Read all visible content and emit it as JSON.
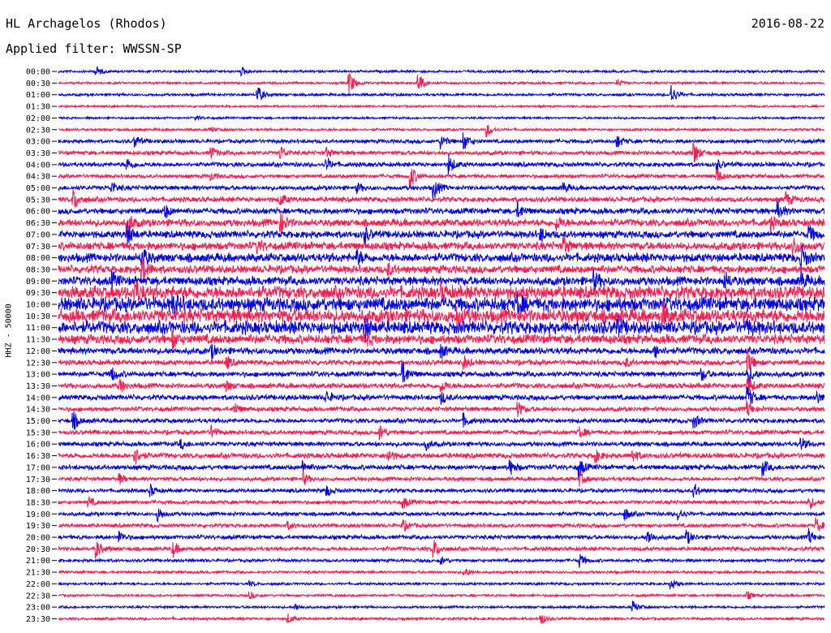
{
  "header": {
    "station": "HL Archagelos (Rhodos)",
    "date": "2016-08-22",
    "filter": "Applied filter: WWSSN-SP"
  },
  "colors": {
    "trace_a": "#0000e6",
    "trace_b": "#ff1a4d",
    "background": "#ffffff"
  },
  "chart_data": {
    "type": "line",
    "title": "HL Archagelos (Rhodos)",
    "ylabel": "HHZ - 50000",
    "xlabel": "",
    "rows": [
      {
        "time": "00:00",
        "activity": 0.1,
        "events": [
          [
            0.05,
            0.4
          ],
          [
            0.24,
            0.3
          ]
        ]
      },
      {
        "time": "00:30",
        "activity": 0.1,
        "events": [
          [
            0.38,
            1.0
          ],
          [
            0.47,
            0.9
          ],
          [
            0.73,
            0.3
          ]
        ]
      },
      {
        "time": "01:00",
        "activity": 0.12,
        "events": [
          [
            0.26,
            0.8
          ],
          [
            0.8,
            0.9
          ]
        ]
      },
      {
        "time": "01:30",
        "activity": 0.08,
        "events": []
      },
      {
        "time": "02:00",
        "activity": 0.08,
        "events": [
          [
            0.18,
            0.2
          ]
        ]
      },
      {
        "time": "02:30",
        "activity": 0.1,
        "events": [
          [
            0.56,
            0.6
          ],
          [
            0.2,
            0.2
          ]
        ]
      },
      {
        "time": "03:00",
        "activity": 0.2,
        "events": [
          [
            0.1,
            0.5
          ],
          [
            0.5,
            0.6
          ],
          [
            0.53,
            0.7
          ],
          [
            0.73,
            0.5
          ]
        ]
      },
      {
        "time": "03:30",
        "activity": 0.22,
        "events": [
          [
            0.2,
            0.5
          ],
          [
            0.29,
            0.6
          ],
          [
            0.83,
            1.0
          ],
          [
            0.35,
            0.4
          ]
        ]
      },
      {
        "time": "04:00",
        "activity": 0.25,
        "events": [
          [
            0.09,
            0.5
          ],
          [
            0.51,
            0.8
          ],
          [
            0.35,
            0.5
          ],
          [
            0.86,
            0.4
          ]
        ]
      },
      {
        "time": "04:30",
        "activity": 0.2,
        "events": [
          [
            0.46,
            1.0
          ],
          [
            0.86,
            0.6
          ],
          [
            0.2,
            0.3
          ]
        ]
      },
      {
        "time": "05:00",
        "activity": 0.25,
        "events": [
          [
            0.07,
            0.5
          ],
          [
            0.49,
            0.9
          ],
          [
            0.39,
            0.4
          ],
          [
            0.66,
            0.4
          ]
        ]
      },
      {
        "time": "05:30",
        "activity": 0.3,
        "events": [
          [
            0.02,
            0.9
          ],
          [
            0.29,
            0.5
          ],
          [
            0.95,
            0.6
          ]
        ]
      },
      {
        "time": "06:00",
        "activity": 0.35,
        "events": [
          [
            0.6,
            0.6
          ],
          [
            0.94,
            0.7
          ],
          [
            0.14,
            0.5
          ]
        ]
      },
      {
        "time": "06:30",
        "activity": 0.45,
        "events": [
          [
            0.09,
            1.0
          ],
          [
            0.29,
            0.9
          ],
          [
            0.65,
            0.6
          ],
          [
            0.93,
            0.5
          ]
        ]
      },
      {
        "time": "07:00",
        "activity": 0.45,
        "events": [
          [
            0.09,
            0.9
          ],
          [
            0.4,
            0.6
          ],
          [
            0.63,
            0.5
          ],
          [
            0.98,
            0.7
          ]
        ]
      },
      {
        "time": "07:30",
        "activity": 0.5,
        "events": [
          [
            0.66,
            0.7
          ],
          [
            0.96,
            0.8
          ],
          [
            0.26,
            0.5
          ]
        ]
      },
      {
        "time": "08:00",
        "activity": 0.55,
        "events": [
          [
            0.11,
            0.8
          ],
          [
            0.39,
            0.6
          ],
          [
            0.97,
            1.0
          ]
        ]
      },
      {
        "time": "08:30",
        "activity": 0.5,
        "events": [
          [
            0.11,
            1.0
          ],
          [
            0.43,
            0.5
          ]
        ]
      },
      {
        "time": "09:00",
        "activity": 0.55,
        "events": [
          [
            0.07,
            0.6
          ],
          [
            0.7,
            0.7
          ],
          [
            0.87,
            0.6
          ],
          [
            0.97,
            0.7
          ]
        ]
      },
      {
        "time": "09:30",
        "activity": 0.85,
        "events": [
          [
            0.1,
            1.0
          ],
          [
            0.5,
            0.5
          ]
        ]
      },
      {
        "time": "10:00",
        "activity": 0.9,
        "events": [
          [
            0.15,
            0.8
          ],
          [
            0.6,
            0.9
          ]
        ]
      },
      {
        "time": "10:30",
        "activity": 0.9,
        "events": [
          [
            0.52,
            0.8
          ],
          [
            0.79,
            0.8
          ]
        ]
      },
      {
        "time": "11:00",
        "activity": 0.85,
        "events": [
          [
            0.4,
            0.7
          ],
          [
            0.73,
            0.6
          ],
          [
            0.9,
            0.5
          ]
        ]
      },
      {
        "time": "11:30",
        "activity": 0.6,
        "events": [
          [
            0.15,
            0.6
          ],
          [
            0.4,
            0.5
          ]
        ]
      },
      {
        "time": "12:00",
        "activity": 0.4,
        "events": [
          [
            0.2,
            0.5
          ],
          [
            0.5,
            0.5
          ],
          [
            0.78,
            0.5
          ]
        ]
      },
      {
        "time": "12:30",
        "activity": 0.3,
        "events": [
          [
            0.22,
            0.5
          ],
          [
            0.53,
            0.5
          ],
          [
            0.74,
            0.4
          ],
          [
            0.9,
            1.0
          ]
        ]
      },
      {
        "time": "13:00",
        "activity": 0.3,
        "events": [
          [
            0.07,
            0.6
          ],
          [
            0.45,
            1.0
          ],
          [
            0.9,
            1.0
          ],
          [
            0.84,
            0.5
          ]
        ]
      },
      {
        "time": "13:30",
        "activity": 0.3,
        "events": [
          [
            0.08,
            0.6
          ],
          [
            0.22,
            0.4
          ],
          [
            0.5,
            0.5
          ],
          [
            0.9,
            0.8
          ]
        ]
      },
      {
        "time": "14:00",
        "activity": 0.3,
        "events": [
          [
            0.35,
            0.5
          ],
          [
            0.5,
            0.5
          ],
          [
            0.9,
            1.0
          ],
          [
            0.99,
            0.5
          ]
        ]
      },
      {
        "time": "14:30",
        "activity": 0.25,
        "events": [
          [
            0.23,
            0.5
          ],
          [
            0.6,
            0.6
          ],
          [
            0.9,
            0.6
          ]
        ]
      },
      {
        "time": "15:00",
        "activity": 0.25,
        "events": [
          [
            0.02,
            0.7
          ],
          [
            0.53,
            0.5
          ],
          [
            0.83,
            0.6
          ]
        ]
      },
      {
        "time": "15:30",
        "activity": 0.25,
        "events": [
          [
            0.2,
            0.5
          ],
          [
            0.42,
            0.6
          ],
          [
            0.68,
            0.5
          ]
        ]
      },
      {
        "time": "16:00",
        "activity": 0.25,
        "events": [
          [
            0.16,
            0.4
          ],
          [
            0.48,
            0.4
          ],
          [
            0.97,
            0.5
          ]
        ]
      },
      {
        "time": "16:30",
        "activity": 0.3,
        "events": [
          [
            0.1,
            0.8
          ],
          [
            0.43,
            0.6
          ],
          [
            0.7,
            0.6
          ],
          [
            0.75,
            0.5
          ]
        ]
      },
      {
        "time": "17:00",
        "activity": 0.28,
        "events": [
          [
            0.32,
            0.5
          ],
          [
            0.59,
            0.6
          ],
          [
            0.68,
            0.8
          ],
          [
            0.92,
            0.6
          ]
        ]
      },
      {
        "time": "17:30",
        "activity": 0.22,
        "events": [
          [
            0.08,
            0.4
          ],
          [
            0.32,
            0.5
          ],
          [
            0.68,
            0.6
          ]
        ]
      },
      {
        "time": "18:00",
        "activity": 0.2,
        "events": [
          [
            0.12,
            0.5
          ],
          [
            0.35,
            0.5
          ],
          [
            0.83,
            0.6
          ]
        ]
      },
      {
        "time": "18:30",
        "activity": 0.2,
        "events": [
          [
            0.04,
            0.4
          ],
          [
            0.45,
            0.5
          ],
          [
            0.98,
            0.6
          ]
        ]
      },
      {
        "time": "19:00",
        "activity": 0.2,
        "events": [
          [
            0.13,
            0.6
          ],
          [
            0.74,
            0.5
          ],
          [
            0.81,
            0.5
          ]
        ]
      },
      {
        "time": "19:30",
        "activity": 0.2,
        "events": [
          [
            0.45,
            0.5
          ],
          [
            0.99,
            0.6
          ],
          [
            0.3,
            0.3
          ]
        ]
      },
      {
        "time": "20:00",
        "activity": 0.22,
        "events": [
          [
            0.08,
            0.5
          ],
          [
            0.77,
            0.6
          ],
          [
            0.82,
            0.6
          ],
          [
            0.98,
            0.6
          ]
        ]
      },
      {
        "time": "20:30",
        "activity": 0.22,
        "events": [
          [
            0.05,
            0.7
          ],
          [
            0.15,
            0.6
          ],
          [
            0.49,
            0.8
          ]
        ]
      },
      {
        "time": "21:00",
        "activity": 0.15,
        "events": [
          [
            0.68,
            0.6
          ],
          [
            0.5,
            0.3
          ]
        ]
      },
      {
        "time": "21:30",
        "activity": 0.12,
        "events": [
          [
            0.53,
            0.4
          ]
        ]
      },
      {
        "time": "22:00",
        "activity": 0.1,
        "events": [
          [
            0.8,
            0.5
          ],
          [
            0.25,
            0.2
          ]
        ]
      },
      {
        "time": "22:30",
        "activity": 0.1,
        "events": [
          [
            0.25,
            0.3
          ],
          [
            0.9,
            0.3
          ]
        ]
      },
      {
        "time": "23:00",
        "activity": 0.1,
        "events": [
          [
            0.31,
            0.3
          ],
          [
            0.75,
            0.5
          ]
        ]
      },
      {
        "time": "23:30",
        "activity": 0.12,
        "events": [
          [
            0.3,
            0.4
          ],
          [
            0.63,
            0.5
          ]
        ]
      }
    ]
  }
}
